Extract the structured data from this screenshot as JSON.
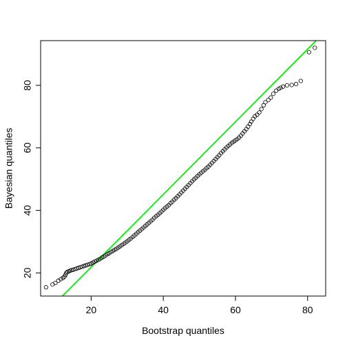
{
  "chart_data": {
    "type": "scatter",
    "title": "",
    "xlabel": "Bootstrap quantiles",
    "ylabel": "Bayesian quantiles",
    "xlim": [
      6.0,
      85.0
    ],
    "ylim": [
      12.6,
      94.3
    ],
    "xticks": [
      20,
      40,
      60,
      80
    ],
    "yticks": [
      20,
      40,
      60,
      80
    ],
    "grid": false,
    "colors": {
      "points": "#000000",
      "line": "#00ee00",
      "frame": "#000000"
    },
    "reference_line": {
      "slope": 1.162,
      "intercept": -1.38
    },
    "series": [
      {
        "points": [
          [
            7.5,
            15.4
          ],
          [
            9.3,
            16.3
          ],
          [
            10.1,
            16.8
          ],
          [
            10.9,
            17.5
          ],
          [
            11.6,
            18.0
          ],
          [
            12.2,
            18.4
          ],
          [
            12.6,
            18.8
          ],
          [
            12.9,
            19.4
          ],
          [
            13.1,
            20.0
          ],
          [
            13.4,
            20.3
          ],
          [
            13.8,
            20.5
          ],
          [
            14.2,
            20.7
          ],
          [
            14.6,
            20.9
          ],
          [
            15.0,
            21.0
          ],
          [
            15.5,
            21.2
          ],
          [
            16.0,
            21.4
          ],
          [
            16.5,
            21.6
          ],
          [
            17.0,
            21.8
          ],
          [
            17.5,
            22.0
          ],
          [
            18.0,
            22.2
          ],
          [
            18.5,
            22.4
          ],
          [
            19.0,
            22.6
          ],
          [
            19.5,
            22.8
          ],
          [
            20.0,
            23.0
          ],
          [
            20.5,
            23.3
          ],
          [
            21.0,
            23.6
          ],
          [
            21.5,
            23.9
          ],
          [
            22.0,
            24.2
          ],
          [
            22.5,
            24.5
          ],
          [
            23.0,
            24.9
          ],
          [
            23.5,
            25.2
          ],
          [
            24.0,
            25.6
          ],
          [
            24.5,
            26.0
          ],
          [
            25.0,
            26.3
          ],
          [
            25.5,
            26.7
          ],
          [
            26.0,
            27.0
          ],
          [
            26.5,
            27.4
          ],
          [
            27.0,
            27.7
          ],
          [
            27.5,
            28.1
          ],
          [
            28.0,
            28.5
          ],
          [
            28.5,
            28.9
          ],
          [
            29.0,
            29.3
          ],
          [
            29.5,
            29.7
          ],
          [
            30.0,
            30.1
          ],
          [
            30.5,
            30.6
          ],
          [
            31.0,
            31.0
          ],
          [
            31.5,
            31.5
          ],
          [
            32.0,
            32.0
          ],
          [
            32.5,
            32.5
          ],
          [
            33.0,
            33.0
          ],
          [
            33.5,
            33.5
          ],
          [
            34.0,
            34.0
          ],
          [
            34.5,
            34.5
          ],
          [
            35.0,
            35.0
          ],
          [
            35.5,
            35.5
          ],
          [
            36.0,
            36.0
          ],
          [
            36.5,
            36.5
          ],
          [
            37.0,
            37.0
          ],
          [
            37.5,
            37.6
          ],
          [
            38.0,
            38.1
          ],
          [
            38.5,
            38.6
          ],
          [
            39.0,
            39.1
          ],
          [
            39.5,
            39.6
          ],
          [
            40.0,
            40.2
          ],
          [
            40.5,
            40.7
          ],
          [
            41.0,
            41.2
          ],
          [
            41.5,
            41.7
          ],
          [
            42.0,
            42.3
          ],
          [
            42.5,
            42.8
          ],
          [
            43.0,
            43.4
          ],
          [
            43.5,
            43.9
          ],
          [
            44.0,
            44.5
          ],
          [
            44.5,
            45.1
          ],
          [
            45.0,
            45.7
          ],
          [
            45.5,
            46.3
          ],
          [
            46.0,
            46.9
          ],
          [
            46.5,
            47.5
          ],
          [
            47.0,
            48.1
          ],
          [
            47.5,
            48.7
          ],
          [
            48.0,
            49.3
          ],
          [
            48.5,
            49.9
          ],
          [
            49.0,
            50.4
          ],
          [
            49.5,
            51.0
          ],
          [
            50.0,
            51.5
          ],
          [
            50.5,
            52.0
          ],
          [
            51.0,
            52.5
          ],
          [
            51.5,
            53.0
          ],
          [
            52.0,
            53.5
          ],
          [
            52.5,
            54.0
          ],
          [
            53.0,
            54.6
          ],
          [
            53.5,
            55.2
          ],
          [
            54.0,
            55.8
          ],
          [
            54.5,
            56.4
          ],
          [
            55.0,
            57.0
          ],
          [
            55.5,
            57.6
          ],
          [
            56.0,
            58.3
          ],
          [
            56.5,
            58.9
          ],
          [
            57.0,
            59.5
          ],
          [
            57.5,
            60.1
          ],
          [
            58.0,
            60.6
          ],
          [
            58.5,
            61.1
          ],
          [
            59.0,
            61.6
          ],
          [
            59.5,
            62.0
          ],
          [
            60.0,
            62.4
          ],
          [
            60.5,
            62.8
          ],
          [
            61.0,
            63.3
          ],
          [
            61.5,
            63.9
          ],
          [
            62.0,
            64.6
          ],
          [
            62.5,
            65.3
          ],
          [
            63.0,
            66.0
          ],
          [
            63.5,
            66.8
          ],
          [
            64.0,
            67.6
          ],
          [
            64.4,
            68.4
          ],
          [
            64.9,
            69.3
          ],
          [
            65.4,
            70.1
          ],
          [
            66.0,
            70.6
          ],
          [
            66.6,
            71.3
          ],
          [
            67.2,
            72.4
          ],
          [
            67.8,
            73.6
          ],
          [
            68.3,
            74.6
          ],
          [
            69.1,
            75.3
          ],
          [
            69.8,
            76.1
          ],
          [
            70.5,
            77.3
          ],
          [
            71.3,
            78.3
          ],
          [
            72.0,
            78.9
          ],
          [
            72.5,
            79.2
          ],
          [
            73.2,
            79.6
          ],
          [
            74.3,
            80.0
          ],
          [
            75.6,
            80.1
          ],
          [
            76.8,
            80.4
          ],
          [
            78.1,
            81.4
          ],
          [
            80.4,
            90.6
          ],
          [
            82.0,
            92.0
          ]
        ]
      }
    ]
  }
}
